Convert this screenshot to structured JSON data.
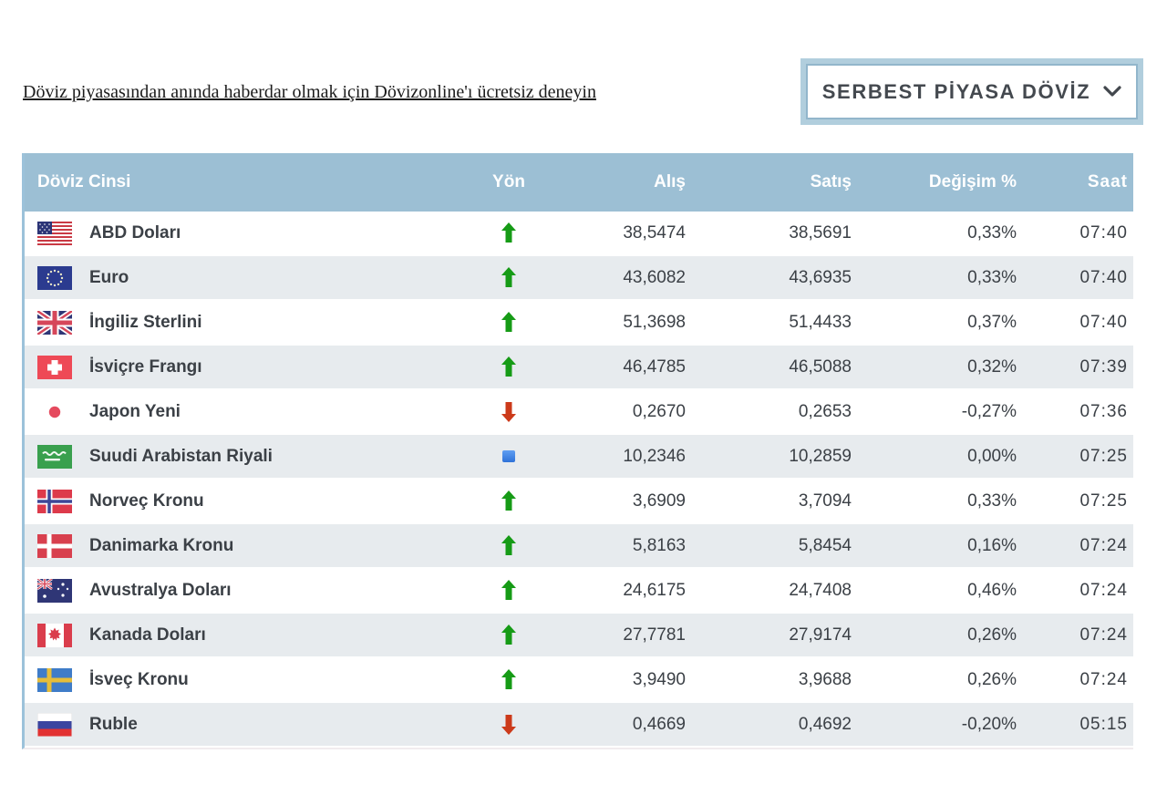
{
  "page": {
    "promo_link": "Döviz piyasasından anında haberdar olmak için Dövizonline'ı ücretsiz deneyin",
    "dropdown": {
      "label": "SERBEST PİYASA DÖVİZ",
      "chevron_icon": "chevron-down-icon"
    }
  },
  "colors": {
    "header_bg": "#9cbfd4",
    "row_alt_bg": "#e7ebee",
    "accent_left_border": "#9cc2da",
    "up_arrow": "#169b16",
    "down_arrow": "#cc3a1a",
    "no_change": "#3c85e8",
    "dropdown_border": "#b1cedd",
    "text": "#3b4046"
  },
  "table": {
    "headers": [
      "Döviz Cinsi",
      "Yön",
      "Alış",
      "Satış",
      "Değişim %",
      "Saat"
    ],
    "rows": [
      {
        "currency": "ABD Doları",
        "flag": "us",
        "direction": "up",
        "buy": "38,5474",
        "sell": "38,5691",
        "change": "0,33%",
        "time": "07:40"
      },
      {
        "currency": "Euro",
        "flag": "eu",
        "direction": "up",
        "buy": "43,6082",
        "sell": "43,6935",
        "change": "0,33%",
        "time": "07:40"
      },
      {
        "currency": "İngiliz Sterlini",
        "flag": "gb",
        "direction": "up",
        "buy": "51,3698",
        "sell": "51,4433",
        "change": "0,37%",
        "time": "07:40"
      },
      {
        "currency": "İsviçre Frangı",
        "flag": "ch",
        "direction": "up",
        "buy": "46,4785",
        "sell": "46,5088",
        "change": "0,32%",
        "time": "07:39"
      },
      {
        "currency": "Japon Yeni",
        "flag": "jp",
        "direction": "down",
        "buy": "0,2670",
        "sell": "0,2653",
        "change": "-0,27%",
        "time": "07:36"
      },
      {
        "currency": "Suudi Arabistan Riyali",
        "flag": "sa",
        "direction": "flat",
        "buy": "10,2346",
        "sell": "10,2859",
        "change": "0,00%",
        "time": "07:25"
      },
      {
        "currency": "Norveç Kronu",
        "flag": "no",
        "direction": "up",
        "buy": "3,6909",
        "sell": "3,7094",
        "change": "0,33%",
        "time": "07:25"
      },
      {
        "currency": "Danimarka Kronu",
        "flag": "dk",
        "direction": "up",
        "buy": "5,8163",
        "sell": "5,8454",
        "change": "0,16%",
        "time": "07:24"
      },
      {
        "currency": "Avustralya Doları",
        "flag": "au",
        "direction": "up",
        "buy": "24,6175",
        "sell": "24,7408",
        "change": "0,46%",
        "time": "07:24"
      },
      {
        "currency": "Kanada Doları",
        "flag": "ca",
        "direction": "up",
        "buy": "27,7781",
        "sell": "27,9174",
        "change": "0,26%",
        "time": "07:24"
      },
      {
        "currency": "İsveç Kronu",
        "flag": "se",
        "direction": "up",
        "buy": "3,9490",
        "sell": "3,9688",
        "change": "0,26%",
        "time": "07:24"
      },
      {
        "currency": "Ruble",
        "flag": "ru",
        "direction": "down",
        "buy": "0,4669",
        "sell": "0,4692",
        "change": "-0,20%",
        "time": "05:15"
      }
    ]
  }
}
